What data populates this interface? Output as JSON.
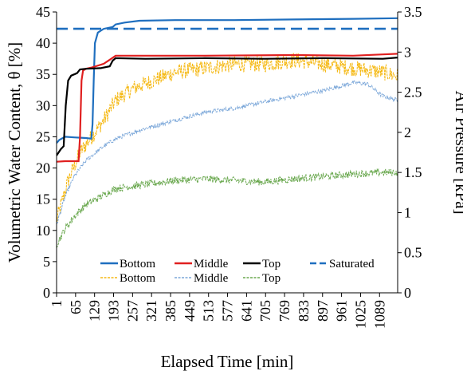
{
  "chart_data": {
    "type": "line",
    "xlabel": "Elapsed Time [min]",
    "ylabel_left": "Volumetric Water Content, θ [%]",
    "ylabel_right": "Air Pressure [kPa]",
    "x_range": [
      1,
      1150
    ],
    "ylim_left": [
      0,
      45
    ],
    "ylim_right": [
      0,
      3.5
    ],
    "x_ticks": [
      "1",
      "65",
      "129",
      "193",
      "257",
      "321",
      "385",
      "449",
      "513",
      "577",
      "641",
      "705",
      "769",
      "833",
      "897",
      "961",
      "1025",
      "1089"
    ],
    "y_ticks_left": [
      "0",
      "5",
      "10",
      "15",
      "20",
      "25",
      "30",
      "35",
      "40",
      "45"
    ],
    "y_ticks_right": [
      "0",
      "0.5",
      "1",
      "1.5",
      "2",
      "2.5",
      "3",
      "3.5"
    ],
    "grid": false,
    "legend_position": "bottom-inside",
    "series": [
      {
        "name": "Bottom",
        "axis": "left",
        "color": "#1f6fbf",
        "style": "solid",
        "points": [
          [
            1,
            24
          ],
          [
            10,
            24.5
          ],
          [
            30,
            25
          ],
          [
            60,
            24.9
          ],
          [
            100,
            24.8
          ],
          [
            118,
            24.7
          ],
          [
            122,
            27
          ],
          [
            126,
            34
          ],
          [
            130,
            40
          ],
          [
            140,
            41.7
          ],
          [
            160,
            42.3
          ],
          [
            190,
            42.6
          ],
          [
            200,
            43
          ],
          [
            230,
            43.3
          ],
          [
            280,
            43.6
          ],
          [
            400,
            43.7
          ],
          [
            600,
            43.7
          ],
          [
            800,
            43.8
          ],
          [
            1000,
            43.9
          ],
          [
            1150,
            44
          ]
        ]
      },
      {
        "name": "Middle",
        "axis": "left",
        "color": "#e02020",
        "style": "solid",
        "points": [
          [
            1,
            21
          ],
          [
            30,
            21.1
          ],
          [
            75,
            21.1
          ],
          [
            80,
            25
          ],
          [
            85,
            34
          ],
          [
            90,
            35.6
          ],
          [
            100,
            35.9
          ],
          [
            120,
            36.1
          ],
          [
            160,
            36.7
          ],
          [
            185,
            37.5
          ],
          [
            200,
            38
          ],
          [
            250,
            38
          ],
          [
            500,
            38
          ],
          [
            800,
            38.1
          ],
          [
            1000,
            38
          ],
          [
            1100,
            38.2
          ],
          [
            1150,
            38.3
          ]
        ]
      },
      {
        "name": "Top",
        "axis": "left",
        "color": "#000000",
        "style": "solid",
        "points": [
          [
            1,
            22
          ],
          [
            15,
            23
          ],
          [
            25,
            23.5
          ],
          [
            32,
            30
          ],
          [
            40,
            34
          ],
          [
            50,
            34.8
          ],
          [
            70,
            35.2
          ],
          [
            80,
            35.8
          ],
          [
            100,
            35.9
          ],
          [
            150,
            36
          ],
          [
            180,
            36.3
          ],
          [
            190,
            37.2
          ],
          [
            200,
            37.6
          ],
          [
            300,
            37.5
          ],
          [
            500,
            37.6
          ],
          [
            700,
            37.5
          ],
          [
            900,
            37.6
          ],
          [
            1100,
            37.5
          ],
          [
            1150,
            37.7
          ]
        ]
      },
      {
        "name": "Saturated",
        "axis": "left",
        "color": "#1f6fbf",
        "style": "dashed",
        "points": [
          [
            1,
            42.3
          ],
          [
            1150,
            42.3
          ]
        ]
      },
      {
        "name": "Bottom",
        "axis": "right",
        "color": "#f5b915",
        "style": "dashed",
        "noise": 0.1,
        "points": [
          [
            1,
            0.9
          ],
          [
            40,
            1.4
          ],
          [
            80,
            1.75
          ],
          [
            120,
            1.95
          ],
          [
            160,
            2.15
          ],
          [
            200,
            2.4
          ],
          [
            260,
            2.55
          ],
          [
            330,
            2.65
          ],
          [
            400,
            2.75
          ],
          [
            500,
            2.8
          ],
          [
            600,
            2.85
          ],
          [
            700,
            2.85
          ],
          [
            800,
            2.9
          ],
          [
            900,
            2.85
          ],
          [
            1000,
            2.8
          ],
          [
            1100,
            2.75
          ],
          [
            1150,
            2.7
          ]
        ]
      },
      {
        "name": "Middle",
        "axis": "right",
        "color": "#7ba7d9",
        "style": "dashed",
        "noise": 0.025,
        "points": [
          [
            1,
            0.85
          ],
          [
            30,
            1.2
          ],
          [
            60,
            1.45
          ],
          [
            100,
            1.65
          ],
          [
            150,
            1.8
          ],
          [
            200,
            1.92
          ],
          [
            300,
            2.05
          ],
          [
            400,
            2.15
          ],
          [
            500,
            2.25
          ],
          [
            600,
            2.3
          ],
          [
            700,
            2.38
          ],
          [
            800,
            2.45
          ],
          [
            900,
            2.52
          ],
          [
            960,
            2.58
          ],
          [
            1000,
            2.62
          ],
          [
            1050,
            2.6
          ],
          [
            1100,
            2.45
          ],
          [
            1150,
            2.4
          ]
        ]
      },
      {
        "name": "Top",
        "axis": "right",
        "color": "#6aa84f",
        "style": "dashed",
        "noise": 0.045,
        "points": [
          [
            1,
            0.6
          ],
          [
            30,
            0.8
          ],
          [
            60,
            0.95
          ],
          [
            100,
            1.1
          ],
          [
            150,
            1.2
          ],
          [
            200,
            1.3
          ],
          [
            300,
            1.35
          ],
          [
            400,
            1.4
          ],
          [
            500,
            1.42
          ],
          [
            600,
            1.4
          ],
          [
            700,
            1.38
          ],
          [
            800,
            1.42
          ],
          [
            900,
            1.45
          ],
          [
            1000,
            1.48
          ],
          [
            1100,
            1.5
          ],
          [
            1150,
            1.5
          ]
        ]
      }
    ]
  }
}
